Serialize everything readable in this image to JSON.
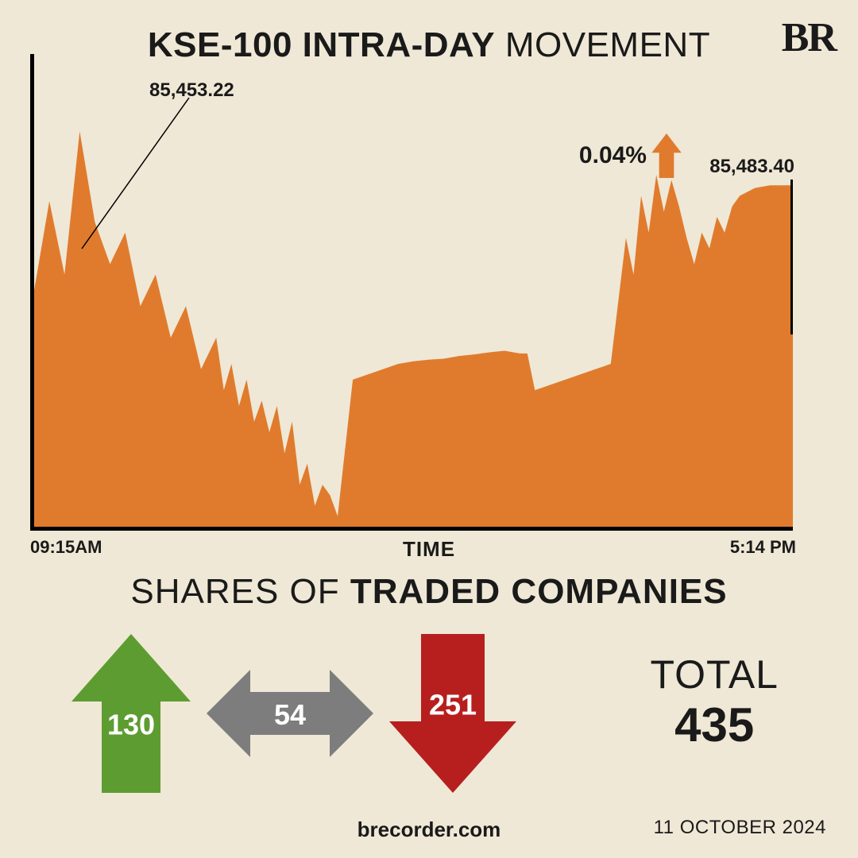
{
  "brand": "BR",
  "title_bold": "KSE-100 INTRA-DAY",
  "title_light": "MOVEMENT",
  "chart": {
    "type": "area",
    "fill_color": "#e07b2e",
    "background_color": "#efe8d6",
    "axis_color": "#000000",
    "axis_width": 5,
    "start_value_label": "85,453.22",
    "end_value_label": "85,483.40",
    "pct_change": "0.04%",
    "pct_arrow_color": "#e07b2e",
    "x_start": "09:15AM",
    "x_end": "5:14 PM",
    "x_label": "TIME",
    "ylim_approx": [
      84700,
      85600
    ],
    "series_approx": [
      [
        0,
        85150
      ],
      [
        2,
        85320
      ],
      [
        4,
        85180
      ],
      [
        6,
        85453
      ],
      [
        8,
        85280
      ],
      [
        10,
        85200
      ],
      [
        12,
        85260
      ],
      [
        14,
        85120
      ],
      [
        16,
        85180
      ],
      [
        18,
        85060
      ],
      [
        20,
        85120
      ],
      [
        22,
        85000
      ],
      [
        24,
        85060
      ],
      [
        25,
        84960
      ],
      [
        26,
        85010
      ],
      [
        27,
        84930
      ],
      [
        28,
        84980
      ],
      [
        29,
        84900
      ],
      [
        30,
        84940
      ],
      [
        31,
        84880
      ],
      [
        32,
        84930
      ],
      [
        33,
        84840
      ],
      [
        34,
        84900
      ],
      [
        35,
        84780
      ],
      [
        36,
        84820
      ],
      [
        37,
        84740
      ],
      [
        38,
        84780
      ],
      [
        39,
        84760
      ],
      [
        40,
        84720
      ],
      [
        42,
        84980
      ],
      [
        44,
        84990
      ],
      [
        46,
        85000
      ],
      [
        48,
        85010
      ],
      [
        50,
        85015
      ],
      [
        52,
        85018
      ],
      [
        54,
        85020
      ],
      [
        56,
        85025
      ],
      [
        58,
        85028
      ],
      [
        60,
        85032
      ],
      [
        62,
        85035
      ],
      [
        64,
        85030
      ],
      [
        65,
        85030
      ],
      [
        66,
        84960
      ],
      [
        68,
        84970
      ],
      [
        70,
        84980
      ],
      [
        72,
        84990
      ],
      [
        74,
        85000
      ],
      [
        76,
        85010
      ],
      [
        78,
        85250
      ],
      [
        79,
        85180
      ],
      [
        80,
        85330
      ],
      [
        81,
        85260
      ],
      [
        82,
        85370
      ],
      [
        83,
        85300
      ],
      [
        84,
        85360
      ],
      [
        85,
        85310
      ],
      [
        86,
        85250
      ],
      [
        87,
        85200
      ],
      [
        88,
        85260
      ],
      [
        89,
        85230
      ],
      [
        90,
        85290
      ],
      [
        91,
        85260
      ],
      [
        92,
        85310
      ],
      [
        93,
        85330
      ],
      [
        95,
        85345
      ],
      [
        97,
        85350
      ],
      [
        99,
        85350
      ],
      [
        100,
        85350
      ]
    ]
  },
  "shares": {
    "title_light": "SHARES OF",
    "title_bold": "TRADED COMPANIES",
    "up": {
      "value": "130",
      "color": "#5d9c31"
    },
    "flat": {
      "value": "54",
      "color": "#7d7d7d"
    },
    "down": {
      "value": "251",
      "color": "#b71f1f"
    },
    "total_label": "TOTAL",
    "total_value": "435"
  },
  "footer": {
    "site": "brecorder.com",
    "date": "11 OCTOBER 2024"
  }
}
